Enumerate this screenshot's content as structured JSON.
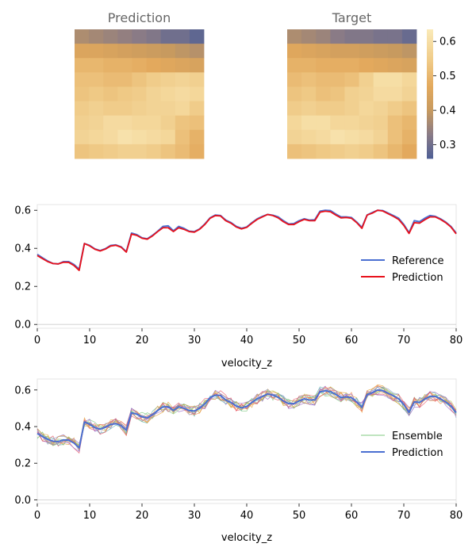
{
  "colors": {
    "reference": "#4a6fd1",
    "prediction_red": "#e8101a",
    "prediction_blue": "#4a6fd1",
    "ensemble": [
      "#7fc97f",
      "#e6a340",
      "#9b6ac8",
      "#e8586a",
      "#b8b84a",
      "#5ab4ac",
      "#f08a4b",
      "#8da0cb"
    ]
  },
  "heatmap_colorscale": {
    "min": 0.26,
    "max": 0.635,
    "stops": [
      [
        0.26,
        "#4e5f96"
      ],
      [
        0.33,
        "#8a7b86"
      ],
      [
        0.4,
        "#c79a5f"
      ],
      [
        0.47,
        "#e3a95d"
      ],
      [
        0.54,
        "#efc985"
      ],
      [
        0.635,
        "#faeab8"
      ]
    ],
    "ticks": [
      "0.3",
      "0.4",
      "0.5",
      "0.6"
    ]
  },
  "chart_data": [
    {
      "type": "heatmap",
      "title": "Prediction",
      "values": [
        [
          0.37,
          0.36,
          0.35,
          0.34,
          0.33,
          0.32,
          0.3,
          0.3,
          0.28
        ],
        [
          0.45,
          0.45,
          0.44,
          0.43,
          0.42,
          0.41,
          0.4,
          0.39,
          0.38
        ],
        [
          0.5,
          0.5,
          0.49,
          0.49,
          0.48,
          0.47,
          0.46,
          0.45,
          0.44
        ],
        [
          0.52,
          0.52,
          0.51,
          0.51,
          0.53,
          0.55,
          0.56,
          0.57,
          0.56
        ],
        [
          0.53,
          0.54,
          0.53,
          0.54,
          0.55,
          0.57,
          0.58,
          0.59,
          0.58
        ],
        [
          0.55,
          0.56,
          0.55,
          0.55,
          0.56,
          0.57,
          0.57,
          0.58,
          0.55
        ],
        [
          0.56,
          0.57,
          0.59,
          0.59,
          0.58,
          0.58,
          0.56,
          0.53,
          0.52
        ],
        [
          0.57,
          0.58,
          0.59,
          0.61,
          0.6,
          0.59,
          0.58,
          0.52,
          0.49
        ],
        [
          0.53,
          0.54,
          0.55,
          0.56,
          0.56,
          0.55,
          0.53,
          0.51,
          0.48
        ]
      ]
    },
    {
      "type": "heatmap",
      "title": "Target",
      "values": [
        [
          0.37,
          0.36,
          0.35,
          0.33,
          0.32,
          0.32,
          0.31,
          0.31,
          0.29
        ],
        [
          0.46,
          0.45,
          0.44,
          0.43,
          0.43,
          0.42,
          0.41,
          0.4,
          0.39
        ],
        [
          0.49,
          0.49,
          0.48,
          0.48,
          0.48,
          0.47,
          0.46,
          0.45,
          0.44
        ],
        [
          0.51,
          0.52,
          0.51,
          0.51,
          0.52,
          0.56,
          0.6,
          0.6,
          0.58
        ],
        [
          0.53,
          0.54,
          0.52,
          0.53,
          0.56,
          0.57,
          0.59,
          0.59,
          0.57
        ],
        [
          0.55,
          0.56,
          0.55,
          0.55,
          0.56,
          0.58,
          0.57,
          0.55,
          0.53
        ],
        [
          0.58,
          0.6,
          0.6,
          0.58,
          0.58,
          0.57,
          0.56,
          0.52,
          0.5
        ],
        [
          0.57,
          0.58,
          0.59,
          0.61,
          0.6,
          0.59,
          0.57,
          0.52,
          0.49
        ],
        [
          0.52,
          0.53,
          0.54,
          0.55,
          0.56,
          0.55,
          0.53,
          0.5,
          0.47
        ]
      ]
    },
    {
      "type": "line",
      "xlabel": "velocity_z",
      "xlim": [
        0,
        80
      ],
      "ylim": [
        -0.02,
        0.63
      ],
      "xticks": [
        0,
        10,
        20,
        30,
        40,
        50,
        60,
        70,
        80
      ],
      "yticks": [
        0.0,
        0.2,
        0.4,
        0.6
      ],
      "legend": "center-right",
      "x": [
        0,
        1,
        2,
        3,
        4,
        5,
        6,
        7,
        8,
        9,
        10,
        11,
        12,
        13,
        14,
        15,
        16,
        17,
        18,
        19,
        20,
        21,
        22,
        23,
        24,
        25,
        26,
        27,
        28,
        29,
        30,
        31,
        32,
        33,
        34,
        35,
        36,
        37,
        38,
        39,
        40,
        41,
        42,
        43,
        44,
        45,
        46,
        47,
        48,
        49,
        50,
        51,
        52,
        53,
        54,
        55,
        56,
        57,
        58,
        59,
        60,
        61,
        62,
        63,
        64,
        65,
        66,
        67,
        68,
        69,
        70,
        71,
        72,
        73,
        74,
        75,
        76,
        77,
        78,
        79,
        80
      ],
      "series": [
        {
          "name": "Reference",
          "values": [
            0.368,
            0.35,
            0.333,
            0.32,
            0.318,
            0.33,
            0.33,
            0.315,
            0.29,
            0.425,
            0.415,
            0.397,
            0.388,
            0.398,
            0.415,
            0.418,
            0.408,
            0.382,
            0.48,
            0.472,
            0.455,
            0.45,
            0.468,
            0.49,
            0.515,
            0.518,
            0.492,
            0.515,
            0.505,
            0.49,
            0.488,
            0.502,
            0.528,
            0.56,
            0.575,
            0.572,
            0.548,
            0.535,
            0.515,
            0.505,
            0.512,
            0.535,
            0.555,
            0.568,
            0.578,
            0.574,
            0.565,
            0.545,
            0.528,
            0.53,
            0.545,
            0.555,
            0.548,
            0.55,
            0.595,
            0.6,
            0.598,
            0.58,
            0.565,
            0.565,
            0.562,
            0.538,
            0.51,
            0.575,
            0.588,
            0.6,
            0.598,
            0.585,
            0.572,
            0.558,
            0.525,
            0.482,
            0.545,
            0.54,
            0.558,
            0.572,
            0.568,
            0.555,
            0.538,
            0.515,
            0.48
          ]
        },
        {
          "name": "Prediction",
          "values": [
            0.362,
            0.346,
            0.33,
            0.32,
            0.318,
            0.327,
            0.326,
            0.31,
            0.284,
            0.425,
            0.413,
            0.395,
            0.386,
            0.396,
            0.412,
            0.416,
            0.406,
            0.38,
            0.475,
            0.468,
            0.453,
            0.448,
            0.465,
            0.488,
            0.508,
            0.508,
            0.488,
            0.508,
            0.5,
            0.488,
            0.485,
            0.5,
            0.525,
            0.558,
            0.572,
            0.57,
            0.545,
            0.532,
            0.512,
            0.502,
            0.51,
            0.532,
            0.552,
            0.565,
            0.578,
            0.572,
            0.56,
            0.54,
            0.525,
            0.525,
            0.54,
            0.552,
            0.545,
            0.545,
            0.59,
            0.595,
            0.592,
            0.575,
            0.56,
            0.562,
            0.558,
            0.535,
            0.505,
            0.575,
            0.585,
            0.6,
            0.596,
            0.582,
            0.568,
            0.552,
            0.52,
            0.478,
            0.535,
            0.532,
            0.55,
            0.565,
            0.565,
            0.552,
            0.535,
            0.512,
            0.476
          ]
        }
      ]
    },
    {
      "type": "line",
      "xlabel": "velocity_z",
      "xlim": [
        0,
        80
      ],
      "ylim": [
        -0.02,
        0.66
      ],
      "xticks": [
        0,
        10,
        20,
        30,
        40,
        50,
        60,
        70,
        80
      ],
      "yticks": [
        0.0,
        0.2,
        0.4,
        0.6
      ],
      "legend": "center-right",
      "ensemble_count": 12,
      "ensemble_spread": 0.018,
      "series": [
        {
          "name": "Ensemble"
        },
        {
          "name": "Prediction",
          "values": [
            0.362,
            0.346,
            0.33,
            0.32,
            0.318,
            0.327,
            0.326,
            0.31,
            0.284,
            0.425,
            0.413,
            0.395,
            0.386,
            0.396,
            0.412,
            0.416,
            0.406,
            0.38,
            0.475,
            0.468,
            0.453,
            0.448,
            0.465,
            0.488,
            0.508,
            0.508,
            0.488,
            0.508,
            0.5,
            0.488,
            0.485,
            0.5,
            0.525,
            0.558,
            0.572,
            0.57,
            0.545,
            0.532,
            0.512,
            0.502,
            0.51,
            0.532,
            0.552,
            0.565,
            0.578,
            0.572,
            0.56,
            0.54,
            0.525,
            0.525,
            0.54,
            0.552,
            0.545,
            0.545,
            0.59,
            0.595,
            0.592,
            0.575,
            0.56,
            0.562,
            0.558,
            0.535,
            0.505,
            0.575,
            0.585,
            0.6,
            0.596,
            0.582,
            0.568,
            0.552,
            0.52,
            0.478,
            0.535,
            0.532,
            0.55,
            0.565,
            0.565,
            0.552,
            0.535,
            0.512,
            0.476
          ]
        }
      ]
    }
  ]
}
